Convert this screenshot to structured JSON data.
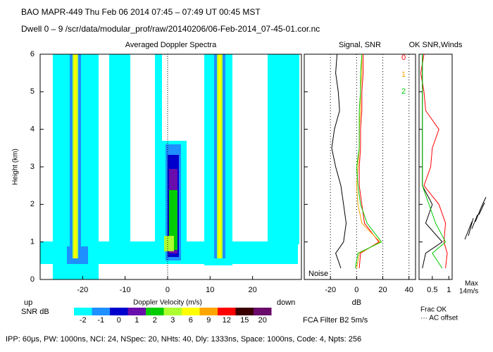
{
  "header": {
    "line1": "BAO   MAPR-449   Thu Feb 06 2014 07:45 – 07:49 UT 00:45 MST",
    "line2": "Dwell  0 – 9   /scr/data/modular_prof/raw/20140206/06-Feb-2014_07-45-01.cor.nc"
  },
  "footer": "IPP:  60μs,  PW: 1000ns,  NCI:  24,  NSpec: 20, NHts: 40,  Dly: 1333ns,  Space: 1000ns,  Code: 4,  Npts: 256",
  "filter_note": "FCA Filter B2   5m/s",
  "chart_data": [
    {
      "type": "spectra",
      "title": "Averaged Doppler Spectra",
      "xlabel": "Doppler Velocity (m/s)",
      "ylabel": "Height (km)",
      "xlim": [
        -30,
        31.5
      ],
      "ylim": [
        0,
        6
      ],
      "xticks": [
        -20,
        -10,
        0,
        10,
        20
      ],
      "yticks": [
        0,
        1,
        2,
        3,
        4,
        5,
        6
      ],
      "left_label": "up",
      "right_label": "down",
      "colorbar": {
        "label": "SNR dB",
        "levels": [
          -2,
          -1,
          0,
          1,
          2,
          3,
          6,
          9,
          12,
          15,
          20
        ],
        "colors": [
          "#00ffff",
          "#1e90ff",
          "#0000cd",
          "#6a0dad",
          "#00cc00",
          "#adff2f",
          "#ffff00",
          "#ffa500",
          "#ff0000",
          "#3a0000",
          "#6a0a6a"
        ]
      }
    },
    {
      "type": "profile",
      "title": "Signal, SNR",
      "xlabel": "dB",
      "xlim": [
        -40,
        45
      ],
      "xticks": [
        -20,
        0,
        20,
        40
      ],
      "grid": true,
      "annotation": "Noise",
      "heights": [
        0.3,
        0.7,
        1.0,
        1.5,
        2.0,
        2.5,
        3.0,
        3.5,
        4.0,
        4.5,
        5.0,
        5.5,
        6.0
      ],
      "series": [
        {
          "color": "#000000",
          "values": [
            -12,
            -16,
            -10,
            -8,
            -10,
            -12,
            -16,
            -19,
            -17,
            -13,
            -14,
            -16,
            -15
          ]
        },
        {
          "name": "0",
          "color": "#ff0000",
          "values": [
            2,
            3,
            17,
            6,
            4,
            2,
            2,
            3,
            3,
            4,
            4,
            5,
            5
          ]
        },
        {
          "name": "1",
          "color": "#ffa500",
          "values": [
            0,
            2,
            18,
            4,
            1,
            0,
            1,
            2,
            2,
            3,
            3,
            4,
            4
          ]
        },
        {
          "name": "2",
          "color": "#00cc00",
          "values": [
            -1,
            1,
            19,
            8,
            3,
            1,
            0,
            2,
            2,
            2,
            3,
            3,
            4
          ]
        }
      ]
    },
    {
      "type": "profile",
      "title": "OK SNR,Winds",
      "xlim": [
        0.1,
        1.1
      ],
      "xticks": [
        0.5,
        1
      ],
      "annotations": [
        "Frac OK",
        "··· AC offset",
        "Max",
        "14m/s"
      ],
      "heights": [
        0.3,
        0.7,
        1.0,
        1.5,
        2.0,
        2.5,
        3.0,
        3.5,
        4.0,
        4.5,
        5.0,
        5.5,
        6.0
      ],
      "series": [
        {
          "color": "#ff0000",
          "values": [
            0.9,
            0.95,
            0.85,
            0.9,
            0.7,
            0.25,
            0.45,
            0.5,
            0.7,
            0.3,
            0.25,
            0.15,
            0.25
          ]
        },
        {
          "color": "#000000",
          "values": [
            0.2,
            0.3,
            0.8,
            0.3,
            0.5,
            0.2,
            0.2,
            0.2,
            0.2,
            0.2,
            0.2,
            0.2,
            0.2
          ]
        },
        {
          "color": "#00cc00",
          "values": [
            0.8,
            0.5,
            0.9,
            0.6,
            0.4,
            0.2,
            0.2,
            0.2,
            0.2,
            0.2,
            0.2,
            0.2,
            0.2
          ]
        }
      ]
    }
  ]
}
